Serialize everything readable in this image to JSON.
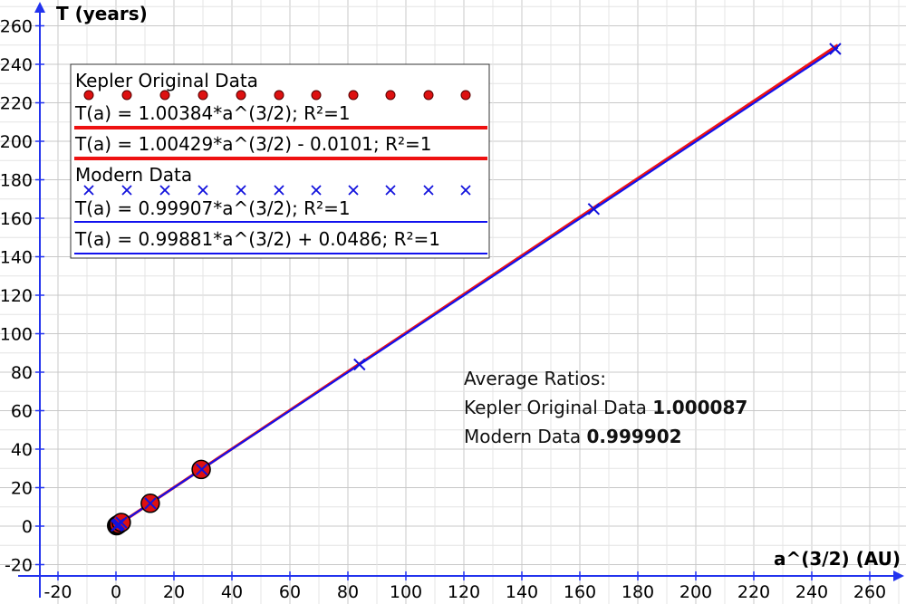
{
  "chart_data": {
    "type": "scatter",
    "xlabel": "a^(3/2) (AU)",
    "ylabel": "T (years)",
    "xlim": [
      -25,
      272
    ],
    "ylim": [
      -25,
      270
    ],
    "xticks": [
      -20,
      0,
      20,
      40,
      60,
      80,
      100,
      120,
      140,
      160,
      180,
      200,
      220,
      240,
      260
    ],
    "yticks": [
      -20,
      0,
      20,
      40,
      60,
      80,
      100,
      120,
      140,
      160,
      180,
      200,
      220,
      240,
      260
    ],
    "grid": true,
    "legend_position": "top-left",
    "series": [
      {
        "name": "Kepler Original Data",
        "marker": "circle",
        "color": "#dd1111",
        "x": [
          0.24,
          0.61,
          1.0,
          1.84,
          11.83,
          29.4
        ],
        "y": [
          0.24,
          0.62,
          1.0,
          1.88,
          11.86,
          29.46
        ]
      },
      {
        "name": "Modern Data",
        "marker": "x",
        "color": "#1111dd",
        "x": [
          0.24,
          0.61,
          1.0,
          1.84,
          11.86,
          29.6,
          84.0,
          164.8,
          248.1
        ],
        "y": [
          0.24,
          0.62,
          1.0,
          1.88,
          11.86,
          29.46,
          84.0,
          164.8,
          248.0
        ]
      }
    ],
    "fits": [
      {
        "label": "T(a)  = 1.00384*a^(3/2); R²=1",
        "slope": 1.00384,
        "intercept": 0,
        "color": "#ee1111"
      },
      {
        "label": "T(a) = 1.00429*a^(3/2) - 0.0101; R²=1",
        "slope": 1.00429,
        "intercept": -0.0101,
        "color": "#ee1111"
      },
      {
        "label": "T(a) = 0.99907*a^(3/2); R²=1",
        "slope": 0.99907,
        "intercept": 0,
        "color": "#1111ee"
      },
      {
        "label": "T(a) = 0.99881*a^(3/2) + 0.0486; R²=1",
        "slope": 0.99881,
        "intercept": 0.0486,
        "color": "#1111ee"
      }
    ],
    "annotation": {
      "heading": "Average Ratios:",
      "kepler_label": "Kepler Original Data",
      "kepler_value": "1.000087",
      "modern_label": "Modern Data",
      "modern_value": "0.999902"
    }
  }
}
